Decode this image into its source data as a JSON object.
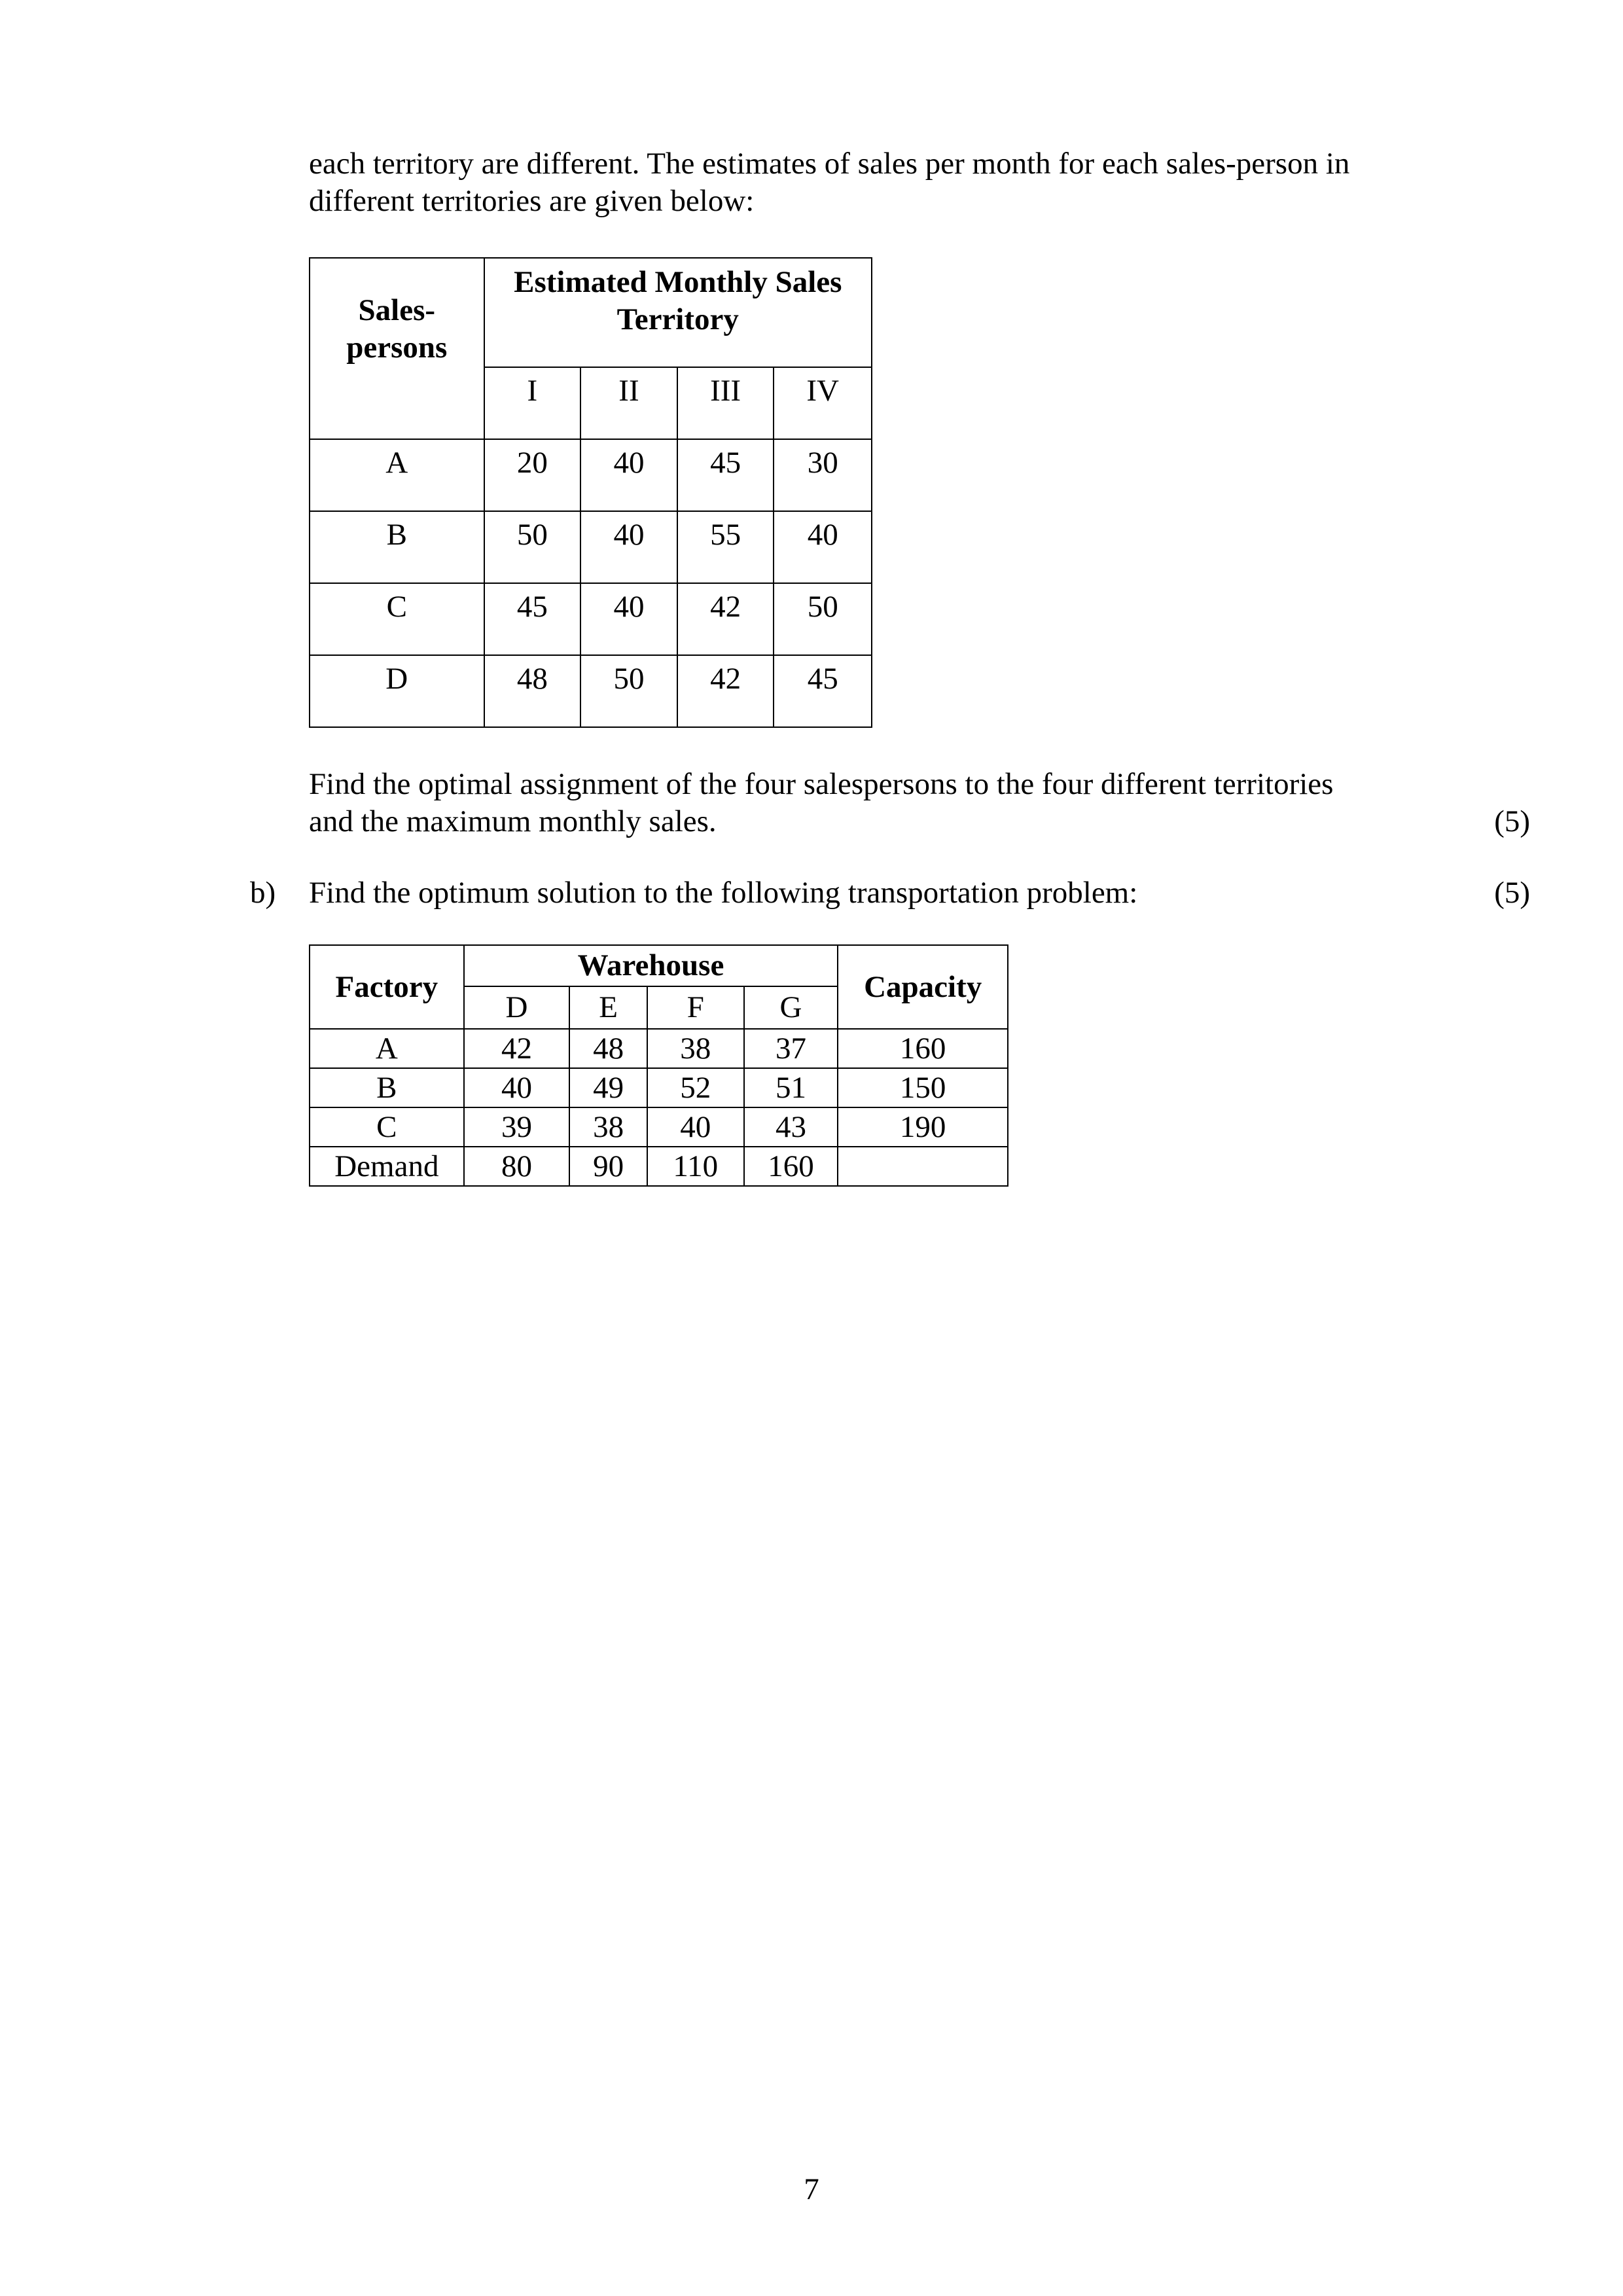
{
  "intro": {
    "line1": "each territory are different. The estimates of sales per month for each sales-person in",
    "line2": "different territories are given below:"
  },
  "assignment_table": {
    "corner_header": [
      "Sales-",
      "persons"
    ],
    "group_header": [
      "Estimated Monthly Sales",
      "Territory"
    ],
    "columns": [
      "I",
      "II",
      "III",
      "IV"
    ],
    "rows": [
      {
        "label": "A",
        "values": [
          "20",
          "40",
          "45",
          "30"
        ]
      },
      {
        "label": "B",
        "values": [
          "50",
          "40",
          "55",
          "40"
        ]
      },
      {
        "label": "C",
        "values": [
          "45",
          "40",
          "42",
          "50"
        ]
      },
      {
        "label": "D",
        "values": [
          "48",
          "50",
          "42",
          "45"
        ]
      }
    ]
  },
  "question_a": {
    "line1": "Find the optimal assignment of the four salespersons to the four different territories",
    "line2": "and the maximum monthly sales.",
    "marks": "(5)"
  },
  "question_b": {
    "label": "b)",
    "text": "Find the optimum solution to the following transportation problem:",
    "marks": "(5)"
  },
  "transport_table": {
    "factory_header": "Factory",
    "group_header": "Warehouse",
    "capacity_header": "Capacity",
    "columns": [
      "D",
      "E",
      "F",
      "G"
    ],
    "rows": [
      {
        "label": "A",
        "values": [
          "42",
          "48",
          "38",
          "37"
        ],
        "capacity": "160"
      },
      {
        "label": "B",
        "values": [
          "40",
          "49",
          "52",
          "51"
        ],
        "capacity": "150"
      },
      {
        "label": "C",
        "values": [
          "39",
          "38",
          "40",
          "43"
        ],
        "capacity": "190"
      },
      {
        "label": "Demand",
        "values": [
          "80",
          "90",
          "110",
          "160"
        ],
        "capacity": ""
      }
    ]
  },
  "page_number": "7"
}
